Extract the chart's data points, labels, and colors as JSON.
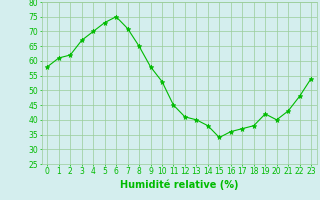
{
  "x": [
    0,
    1,
    2,
    3,
    4,
    5,
    6,
    7,
    8,
    9,
    10,
    11,
    12,
    13,
    14,
    15,
    16,
    17,
    18,
    19,
    20,
    21,
    22,
    23
  ],
  "y": [
    58,
    61,
    62,
    67,
    70,
    73,
    75,
    71,
    65,
    58,
    53,
    45,
    41,
    40,
    38,
    34,
    36,
    37,
    38,
    42,
    40,
    43,
    48,
    54
  ],
  "line_color": "#00bb00",
  "marker": "*",
  "marker_size": 3.5,
  "background_color": "#d4eeee",
  "grid_color": "#99cc99",
  "xlabel": "Humidité relative (%)",
  "xlabel_color": "#00bb00",
  "xlabel_fontsize": 7,
  "tick_color": "#00bb00",
  "tick_fontsize": 5.5,
  "ylim": [
    25,
    80
  ],
  "yticks": [
    25,
    30,
    35,
    40,
    45,
    50,
    55,
    60,
    65,
    70,
    75,
    80
  ],
  "xlim": [
    -0.5,
    23.5
  ],
  "xticks": [
    0,
    1,
    2,
    3,
    4,
    5,
    6,
    7,
    8,
    9,
    10,
    11,
    12,
    13,
    14,
    15,
    16,
    17,
    18,
    19,
    20,
    21,
    22,
    23
  ]
}
